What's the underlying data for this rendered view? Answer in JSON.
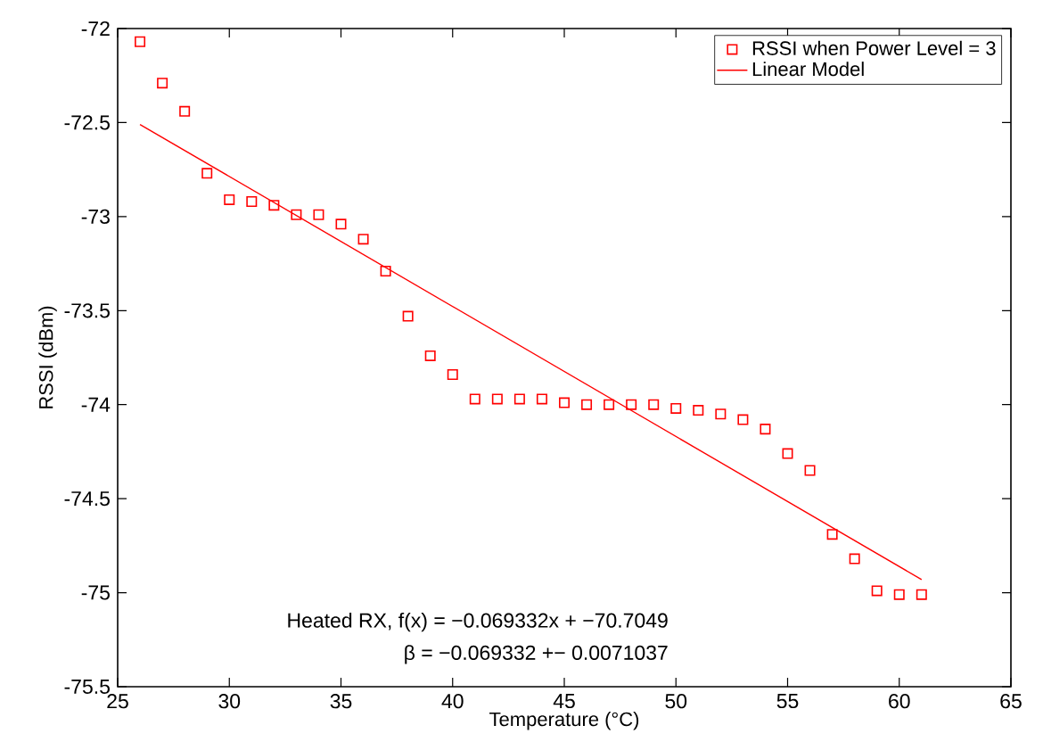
{
  "chart_data": {
    "type": "scatter",
    "xlabel": "Temperature (°C)",
    "ylabel": "RSSI (dBm)",
    "xlim": [
      25,
      65
    ],
    "ylim": [
      -75.5,
      -72
    ],
    "xticks": [
      25,
      30,
      35,
      40,
      45,
      50,
      55,
      60,
      65
    ],
    "yticks": [
      -75.5,
      -75,
      -74.5,
      -74,
      -73.5,
      -73,
      -72.5,
      -72
    ],
    "legend": "top right",
    "series": [
      {
        "name": "RSSI when Power Level = 3",
        "marker": "square",
        "color": "#ff0000",
        "x": [
          26,
          27,
          28,
          29,
          30,
          31,
          32,
          33,
          34,
          35,
          36,
          37,
          38,
          39,
          40,
          41,
          42,
          43,
          44,
          45,
          46,
          47,
          48,
          49,
          50,
          51,
          52,
          53,
          54,
          55,
          56,
          57,
          58,
          59,
          60,
          61
        ],
        "values": [
          -72.07,
          -72.29,
          -72.44,
          -72.77,
          -72.91,
          -72.92,
          -72.94,
          -72.99,
          -72.99,
          -73.04,
          -73.12,
          -73.29,
          -73.53,
          -73.74,
          -73.84,
          -73.97,
          -73.97,
          -73.97,
          -73.97,
          -73.99,
          -74.0,
          -74.0,
          -74.0,
          -74.0,
          -74.02,
          -74.03,
          -74.05,
          -74.08,
          -74.13,
          -74.26,
          -74.35,
          -74.69,
          -74.82,
          -74.99,
          -75.01,
          -75.01
        ]
      },
      {
        "name": "Linear Model",
        "type": "line",
        "line_style": "solid",
        "color": "#ff0000",
        "x": [
          26,
          61
        ],
        "values": [
          -72.51,
          -74.93
        ]
      }
    ],
    "annotations": [
      "Heated RX, f(x) = −0.069332x + −70.7049",
      "β = −0.069332 +− 0.0071037"
    ]
  }
}
